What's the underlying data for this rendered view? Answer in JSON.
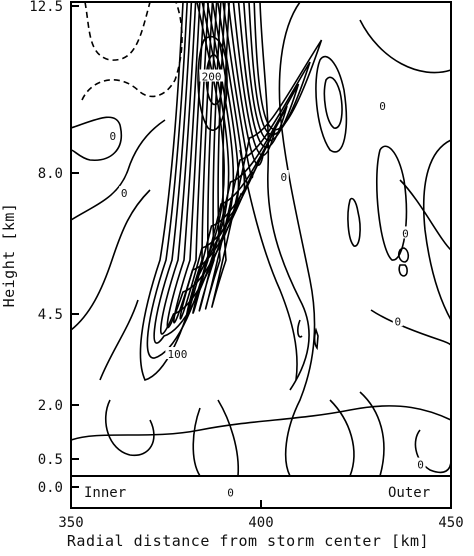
{
  "chart_data": {
    "type": "contour",
    "xlabel": "Radial distance from storm center [km]",
    "ylabel": "Height [km]",
    "xlim": [
      350,
      450
    ],
    "x_ticks": [
      "350",
      "400",
      "450"
    ],
    "y_ticks": [
      "12.5",
      "8.0",
      "4.5",
      "2.0",
      "0.5",
      "0.0"
    ],
    "contour_labels": [
      {
        "text": "200",
        "x": 387,
        "y": 10.6
      },
      {
        "text": "100",
        "x": 378,
        "y": 3.4
      },
      {
        "text": "0",
        "x": 361,
        "y": 9.0
      },
      {
        "text": "0",
        "x": 364,
        "y": 7.5
      },
      {
        "text": "0",
        "x": 406,
        "y": 7.9
      },
      {
        "text": "0",
        "x": 432,
        "y": 9.8
      },
      {
        "text": "0",
        "x": 438,
        "y": 6.5
      },
      {
        "text": "0",
        "x": 436,
        "y": 4.3
      },
      {
        "text": "0",
        "x": 442,
        "y": 0.4
      },
      {
        "text": "0",
        "x": 392,
        "y": -0.1
      }
    ],
    "region_labels": [
      "Inner",
      "Outer"
    ]
  }
}
